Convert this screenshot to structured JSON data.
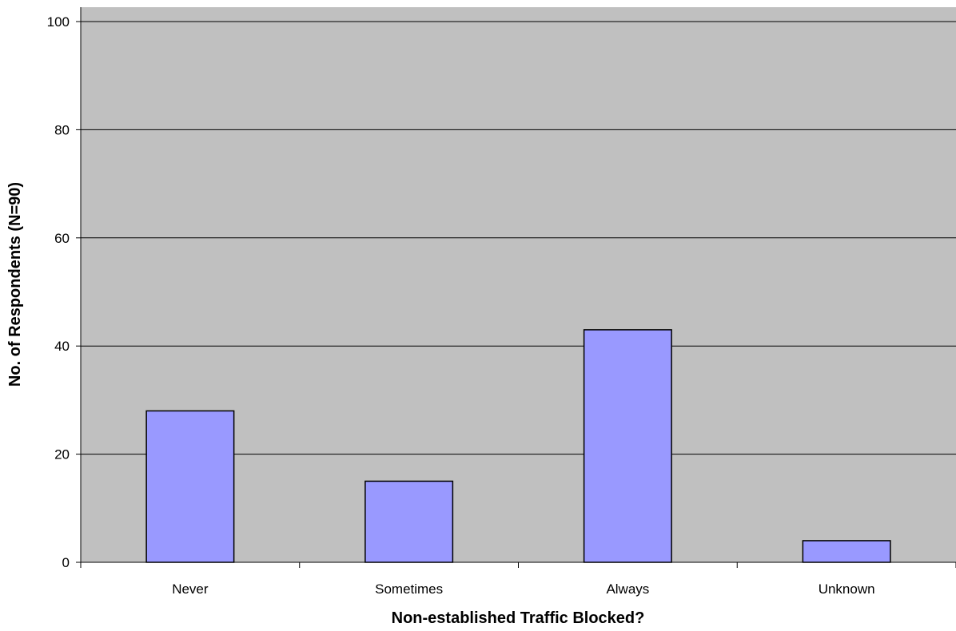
{
  "chart_data": {
    "type": "bar",
    "title": "",
    "xlabel": "Non-established Traffic Blocked?",
    "ylabel": "No. of Respondents (N=90)",
    "categories": [
      "Never",
      "Sometimes",
      "Always",
      "Unknown"
    ],
    "values": [
      28,
      15,
      43,
      4
    ],
    "ylim": [
      0,
      100
    ],
    "yticks": [
      0,
      20,
      40,
      60,
      80,
      100
    ],
    "ytick_labels": [
      "0",
      "20",
      "40",
      "60",
      "80",
      "100"
    ],
    "grid": true,
    "legend": false,
    "colors": {
      "plot_background": "#c0c0c0",
      "bar_fill": "#9999ff",
      "bar_stroke": "#000000",
      "gridline": "#000000"
    }
  }
}
